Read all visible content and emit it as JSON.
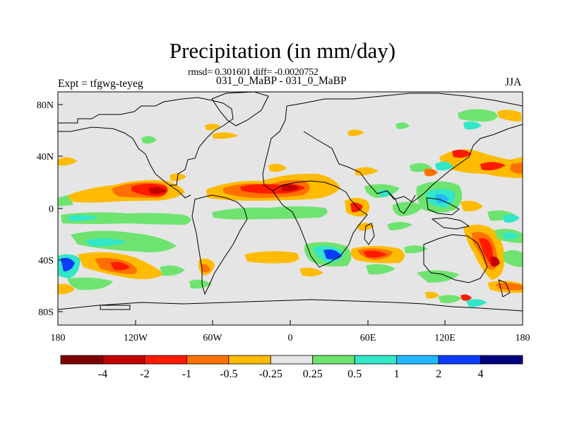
{
  "title": "Precipitation (in mm/day)",
  "subtitle": "rmsd= 0.301601 diff= -0.0020752",
  "left_label": "Expt = tfgwg-teyeg",
  "center_label": "031_0_MaBP - 031_0_MaBP",
  "right_label": "JJA",
  "lon_ticks": [
    "180",
    "120W",
    "60W",
    "0",
    "60E",
    "120E",
    "180"
  ],
  "lat_ticks": [
    "80N",
    "40N",
    "0",
    "40S",
    "80S"
  ],
  "colorbar": {
    "colors": [
      "#7f0000",
      "#c40000",
      "#ff1a00",
      "#ff7000",
      "#ffbb00",
      "#e5e5e5",
      "#6fe36f",
      "#33e6c8",
      "#22b8ff",
      "#0a3cff",
      "#000080"
    ],
    "labels": [
      "-4",
      "-2",
      "-1",
      "-0.5",
      "-0.25",
      "0.25",
      "0.5",
      "1",
      "2",
      "4"
    ]
  },
  "colors": {
    "background": "#e5e5e5",
    "coastline": "#000000"
  }
}
